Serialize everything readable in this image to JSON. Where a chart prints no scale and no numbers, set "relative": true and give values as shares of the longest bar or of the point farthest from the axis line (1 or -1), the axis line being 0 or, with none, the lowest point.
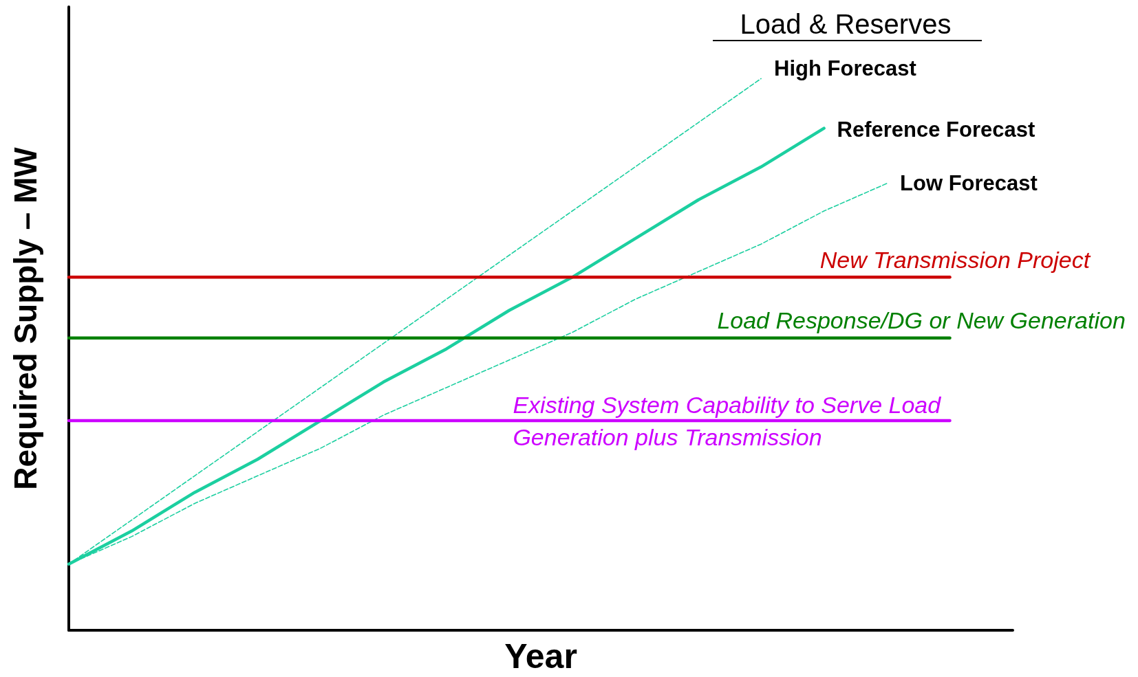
{
  "chart_data": {
    "type": "line",
    "title": "Load & Reserves",
    "xlabel": "Year",
    "ylabel": "Required Supply – MW",
    "relative": true,
    "grid": false,
    "marker": "none",
    "categories": [
      null,
      null,
      null,
      null,
      null,
      null,
      null,
      null,
      null,
      null,
      null,
      null,
      null,
      null,
      null,
      null
    ],
    "series": [
      {
        "name": "High Forecast",
        "color": "#1ccfa0",
        "line_style": "dashed",
        "values": [
          0.12,
          0.2,
          0.28,
          0.36,
          0.44,
          0.52,
          0.6,
          0.68,
          0.76,
          0.84,
          0.92,
          1,
          null,
          null,
          null,
          null
        ]
      },
      {
        "name": "Reference Forecast",
        "color": "#1ccfa0",
        "line_style": "solid",
        "values": [
          0.12,
          0.18,
          0.25,
          0.31,
          0.38,
          0.45,
          0.51,
          0.58,
          0.64,
          0.71,
          0.78,
          0.84,
          0.91,
          null,
          null,
          null
        ]
      },
      {
        "name": "Low Forecast",
        "color": "#1ccfa0",
        "line_style": "dashed",
        "values": [
          0.12,
          0.17,
          0.23,
          0.28,
          0.33,
          0.39,
          0.44,
          0.49,
          0.54,
          0.6,
          0.65,
          0.7,
          0.76,
          0.81,
          null,
          null
        ]
      },
      {
        "name": "New Transmission Project",
        "color": "#cc0000",
        "line_style": "solid",
        "values": [
          0.64,
          0.64,
          0.64,
          0.64,
          0.64,
          0.64,
          0.64,
          0.64,
          0.64,
          0.64,
          0.64,
          0.64,
          0.64,
          0.64,
          0.64,
          null
        ]
      },
      {
        "name": "Load Response/DG or New Generation",
        "color": "#008000",
        "line_style": "solid",
        "values": [
          0.53,
          0.53,
          0.53,
          0.53,
          0.53,
          0.53,
          0.53,
          0.53,
          0.53,
          0.53,
          0.53,
          0.53,
          0.53,
          0.53,
          0.53,
          null
        ]
      },
      {
        "name": "Existing System Capability to Serve Load\nGeneration plus Transmission",
        "color": "#cc00ff",
        "line_style": "solid",
        "values": [
          0.38,
          0.38,
          0.38,
          0.38,
          0.38,
          0.38,
          0.38,
          0.38,
          0.38,
          0.38,
          0.38,
          0.38,
          0.38,
          0.38,
          0.38,
          null
        ]
      }
    ]
  }
}
